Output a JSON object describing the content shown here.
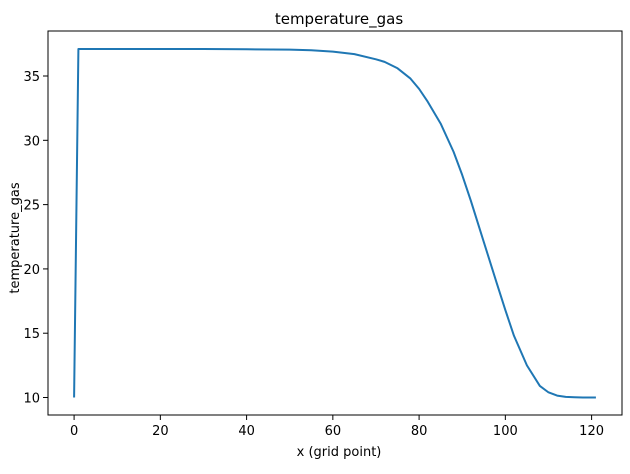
{
  "chart_data": {
    "type": "line",
    "title": "temperature_gas",
    "xlabel": "x (grid point)",
    "ylabel": "temperature_gas",
    "xlim": [
      -6.05,
      127.05
    ],
    "ylim": [
      8.64,
      38.5
    ],
    "grid": false,
    "x_ticks": [
      0,
      20,
      40,
      60,
      80,
      100,
      120
    ],
    "y_ticks": [
      10,
      15,
      20,
      25,
      30,
      35
    ],
    "series": [
      {
        "color": "#1f77b4",
        "x": [
          0,
          1,
          10,
          20,
          30,
          40,
          50,
          55,
          60,
          65,
          70,
          72,
          75,
          78,
          80,
          82,
          85,
          88,
          90,
          92,
          95,
          98,
          100,
          102,
          105,
          108,
          110,
          112,
          114,
          116,
          118,
          120,
          121
        ],
        "y": [
          10.0,
          37.1,
          37.1,
          37.1,
          37.1,
          37.08,
          37.05,
          37.0,
          36.9,
          36.7,
          36.3,
          36.1,
          35.6,
          34.8,
          34.0,
          33.0,
          31.3,
          29.1,
          27.3,
          25.3,
          22.1,
          18.9,
          16.8,
          14.8,
          12.5,
          10.9,
          10.4,
          10.15,
          10.05,
          10.02,
          10.0,
          10.0,
          10.0
        ]
      }
    ]
  }
}
